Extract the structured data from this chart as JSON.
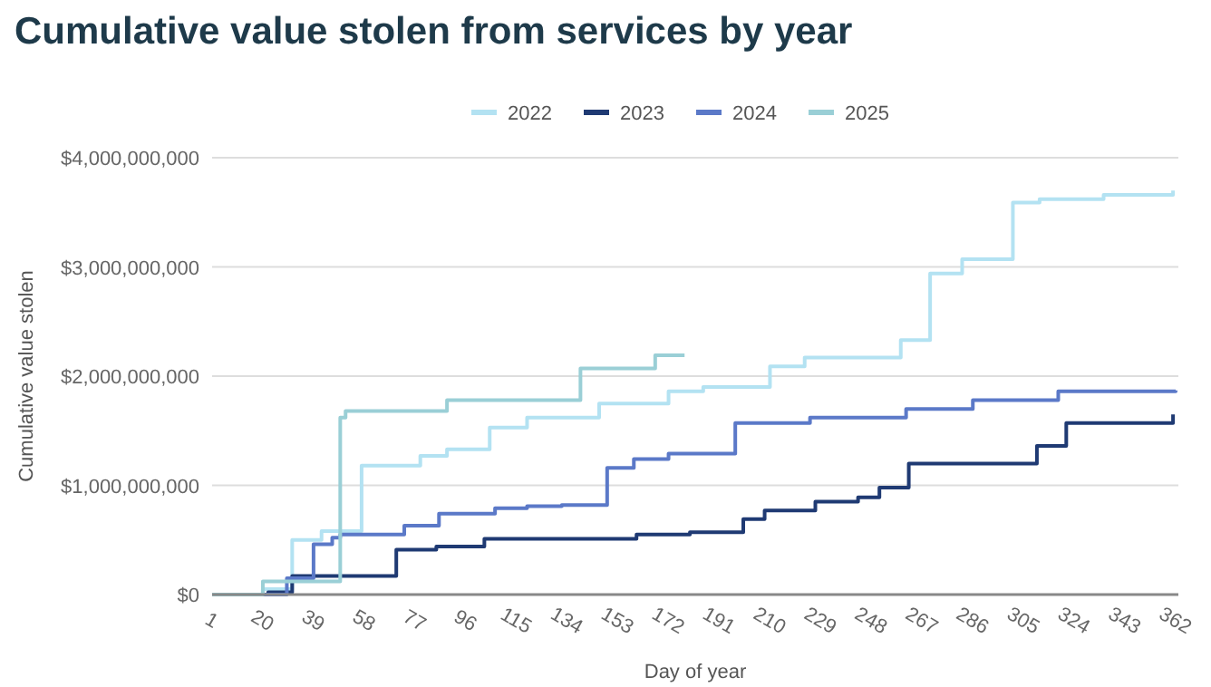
{
  "chart_data": {
    "type": "step",
    "title": "Cumulative value stolen from services by year",
    "xlabel": "Day of year",
    "ylabel": "Cumulative value stolen",
    "xlim": [
      1,
      363
    ],
    "xticks": [
      1,
      20,
      39,
      58,
      77,
      96,
      115,
      134,
      153,
      172,
      191,
      210,
      229,
      248,
      267,
      286,
      305,
      324,
      343,
      362
    ],
    "ylim": [
      0,
      4000000000
    ],
    "yticks": [
      {
        "value": 0,
        "label": "$0"
      },
      {
        "value": 1000000000,
        "label": "$1,000,000,000"
      },
      {
        "value": 2000000000,
        "label": "$2,000,000,000"
      },
      {
        "value": 3000000000,
        "label": "$3,000,000,000"
      },
      {
        "value": 4000000000,
        "label": "$4,000,000,000"
      }
    ],
    "grid": "y",
    "legend": "top",
    "series": [
      {
        "name": "2022",
        "color": "#b3e2f2",
        "x": [
          1,
          20,
          31,
          42,
          57,
          79,
          89,
          105,
          119,
          146,
          172,
          185,
          210,
          223,
          259,
          270,
          282,
          301,
          311,
          335,
          361
        ],
        "values": [
          0,
          50000000,
          500000000,
          580000000,
          1180000000,
          1270000000,
          1330000000,
          1530000000,
          1620000000,
          1750000000,
          1860000000,
          1900000000,
          2090000000,
          2170000000,
          2330000000,
          2940000000,
          3070000000,
          3590000000,
          3620000000,
          3660000000,
          3700000000
        ]
      },
      {
        "name": "2023",
        "color": "#1f3a73",
        "x": [
          1,
          22,
          31,
          70,
          85,
          103,
          160,
          180,
          200,
          208,
          227,
          243,
          251,
          262,
          310,
          321,
          361
        ],
        "values": [
          0,
          20000000,
          170000000,
          410000000,
          440000000,
          510000000,
          550000000,
          570000000,
          690000000,
          770000000,
          850000000,
          890000000,
          980000000,
          1200000000,
          1360000000,
          1570000000,
          1650000000
        ]
      },
      {
        "name": "2024",
        "color": "#5b79c8",
        "x": [
          1,
          29,
          39,
          46,
          49,
          73,
          86,
          107,
          119,
          132,
          149,
          159,
          172,
          197,
          225,
          261,
          286,
          318,
          362
        ],
        "values": [
          0,
          150000000,
          460000000,
          520000000,
          550000000,
          630000000,
          740000000,
          790000000,
          810000000,
          820000000,
          1160000000,
          1240000000,
          1290000000,
          1570000000,
          1620000000,
          1700000000,
          1780000000,
          1860000000,
          1870000000
        ]
      },
      {
        "name": "2025",
        "color": "#9acfd6",
        "x": [
          1,
          20,
          49,
          51,
          89,
          139,
          167,
          178
        ],
        "values": [
          0,
          120000000,
          1620000000,
          1680000000,
          1780000000,
          2070000000,
          2190000000,
          2190000000
        ]
      }
    ]
  }
}
